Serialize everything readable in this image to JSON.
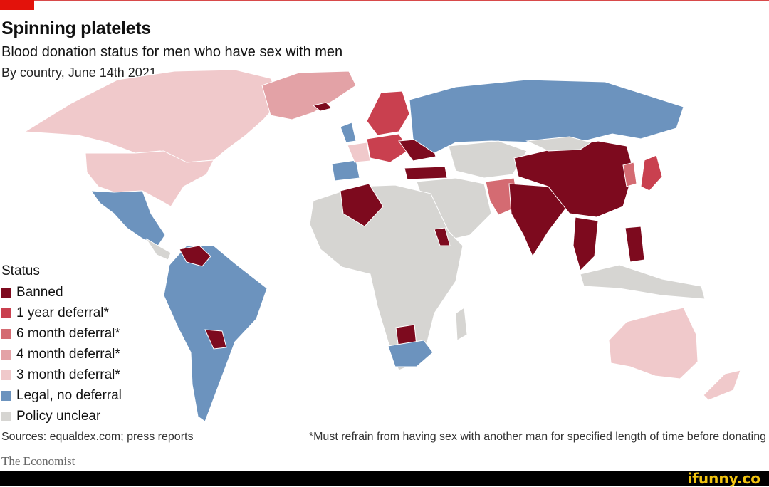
{
  "header": {
    "title": "Spinning platelets",
    "subtitle": "Blood donation status for men who have sex with men",
    "date_line": "By country, June 14th 2021"
  },
  "legend": {
    "title": "Status",
    "items": [
      {
        "label": "Banned",
        "color": "#7d0a1e"
      },
      {
        "label": "1 year deferral*",
        "color": "#c9404f"
      },
      {
        "label": "6 month deferral*",
        "color": "#d46b72"
      },
      {
        "label": "4 month deferral*",
        "color": "#e3a2a6"
      },
      {
        "label": "3 month deferral*",
        "color": "#f0c9cb"
      },
      {
        "label": "Legal, no deferral",
        "color": "#6c93be"
      },
      {
        "label": "Policy unclear",
        "color": "#d6d5d2"
      }
    ]
  },
  "footer": {
    "sources": "Sources: equaldex.com; press reports",
    "footnote": "*Must refrain from having sex with another man for specified length of time before donating",
    "brand": "The Economist"
  },
  "watermark": "ifunny.co"
}
